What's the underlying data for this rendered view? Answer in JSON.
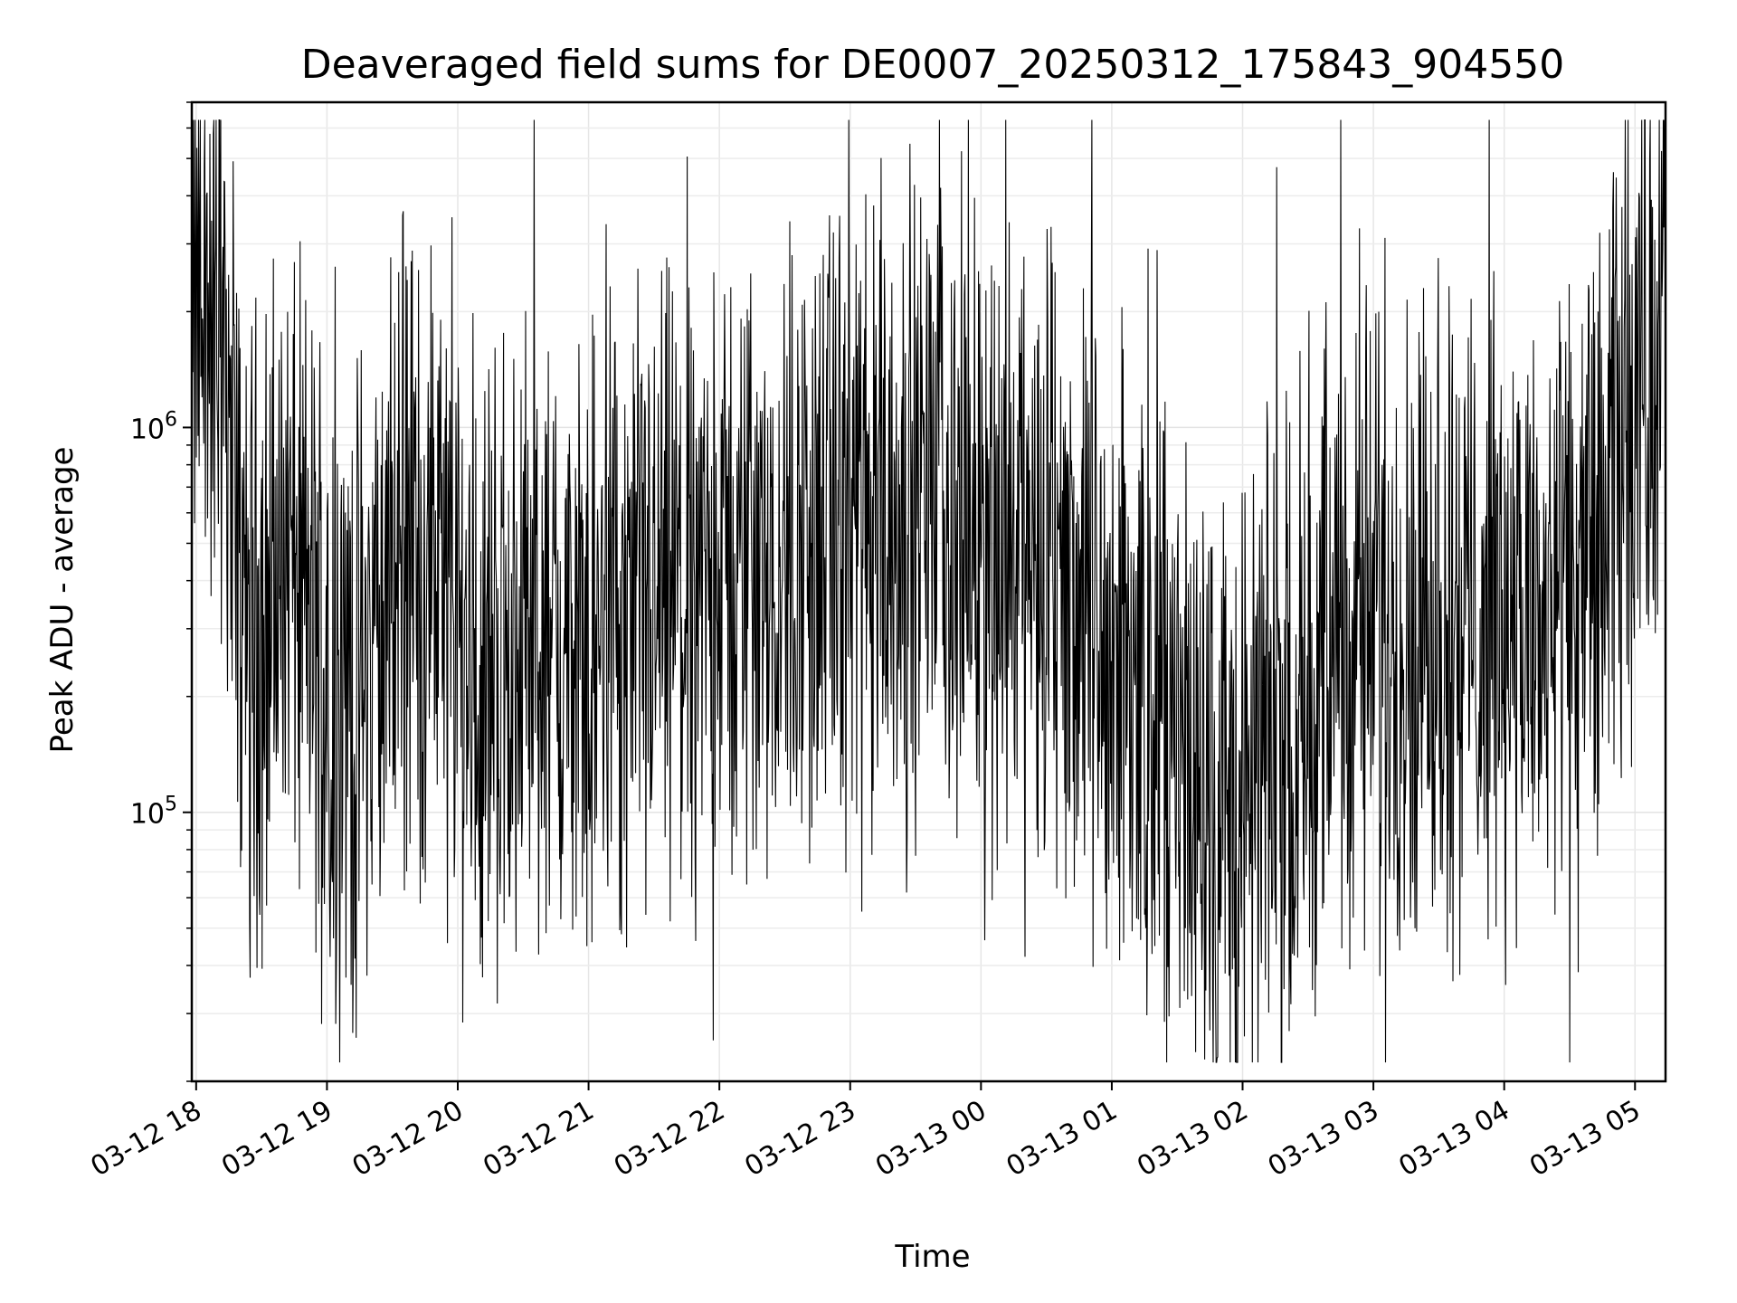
{
  "chart_data": {
    "type": "line",
    "title": "Deaveraged field sums for DE0007_20250312_175843_904550",
    "xlabel": "Time",
    "ylabel": "Peak ADU - average",
    "yscale": "log",
    "ylim": [
      20000,
      7000000
    ],
    "xlim": [
      "2025-03-12 17:58",
      "2025-03-13 05:14"
    ],
    "grid": true,
    "line_color": "#000000",
    "x_ticks": [
      {
        "value": "2025-03-12 18:00",
        "label": "03-12 18"
      },
      {
        "value": "2025-03-12 19:00",
        "label": "03-12 19"
      },
      {
        "value": "2025-03-12 20:00",
        "label": "03-12 20"
      },
      {
        "value": "2025-03-12 21:00",
        "label": "03-12 21"
      },
      {
        "value": "2025-03-12 22:00",
        "label": "03-12 22"
      },
      {
        "value": "2025-03-12 23:00",
        "label": "03-12 23"
      },
      {
        "value": "2025-03-13 00:00",
        "label": "03-13 00"
      },
      {
        "value": "2025-03-13 01:00",
        "label": "03-13 01"
      },
      {
        "value": "2025-03-13 02:00",
        "label": "03-13 02"
      },
      {
        "value": "2025-03-13 03:00",
        "label": "03-13 03"
      },
      {
        "value": "2025-03-13 04:00",
        "label": "03-13 04"
      },
      {
        "value": "2025-03-13 05:00",
        "label": "03-13 05"
      }
    ],
    "y_ticks": [
      {
        "value": 100000,
        "base": "10",
        "exp": "5"
      },
      {
        "value": 1000000,
        "base": "10",
        "exp": "6"
      }
    ],
    "series": [
      {
        "x": [
          "2025-03-12 17:58",
          "2025-03-12 18:05",
          "2025-03-12 18:15",
          "2025-03-12 18:20",
          "2025-03-12 18:30",
          "2025-03-12 18:40",
          "2025-03-12 18:50",
          "2025-03-12 19:00",
          "2025-03-12 19:10",
          "2025-03-12 19:20",
          "2025-03-12 19:30",
          "2025-03-12 19:40",
          "2025-03-12 19:50",
          "2025-03-12 20:00",
          "2025-03-12 20:10",
          "2025-03-12 20:20",
          "2025-03-12 20:30",
          "2025-03-12 20:40",
          "2025-03-12 20:50",
          "2025-03-12 21:00",
          "2025-03-12 21:15",
          "2025-03-12 21:30",
          "2025-03-12 21:45",
          "2025-03-12 22:00",
          "2025-03-12 22:15",
          "2025-03-12 22:30",
          "2025-03-12 22:45",
          "2025-03-12 23:00",
          "2025-03-12 23:15",
          "2025-03-12 23:30",
          "2025-03-12 23:45",
          "2025-03-13 00:00",
          "2025-03-13 00:15",
          "2025-03-13 00:30",
          "2025-03-13 00:45",
          "2025-03-13 01:00",
          "2025-03-13 01:15",
          "2025-03-13 01:30",
          "2025-03-13 01:45",
          "2025-03-13 02:00",
          "2025-03-13 02:15",
          "2025-03-13 02:30",
          "2025-03-13 02:45",
          "2025-03-13 03:00",
          "2025-03-13 03:15",
          "2025-03-13 03:30",
          "2025-03-13 03:45",
          "2025-03-13 04:00",
          "2025-03-13 04:15",
          "2025-03-13 04:30",
          "2025-03-13 04:45",
          "2025-03-13 05:00",
          "2025-03-13 05:14"
        ],
        "values": [
          2000000,
          2000000,
          1500000,
          400000,
          300000,
          450000,
          350000,
          250000,
          200000,
          250000,
          400000,
          500000,
          450000,
          280000,
          250000,
          250000,
          280000,
          250000,
          250000,
          260000,
          300000,
          330000,
          350000,
          400000,
          450000,
          480000,
          500000,
          550000,
          600000,
          650000,
          600000,
          550000,
          500000,
          450000,
          350000,
          280000,
          200000,
          150000,
          110000,
          110000,
          150000,
          220000,
          280000,
          330000,
          330000,
          320000,
          320000,
          330000,
          300000,
          350000,
          500000,
          1300000,
          1900000
        ]
      }
    ]
  }
}
